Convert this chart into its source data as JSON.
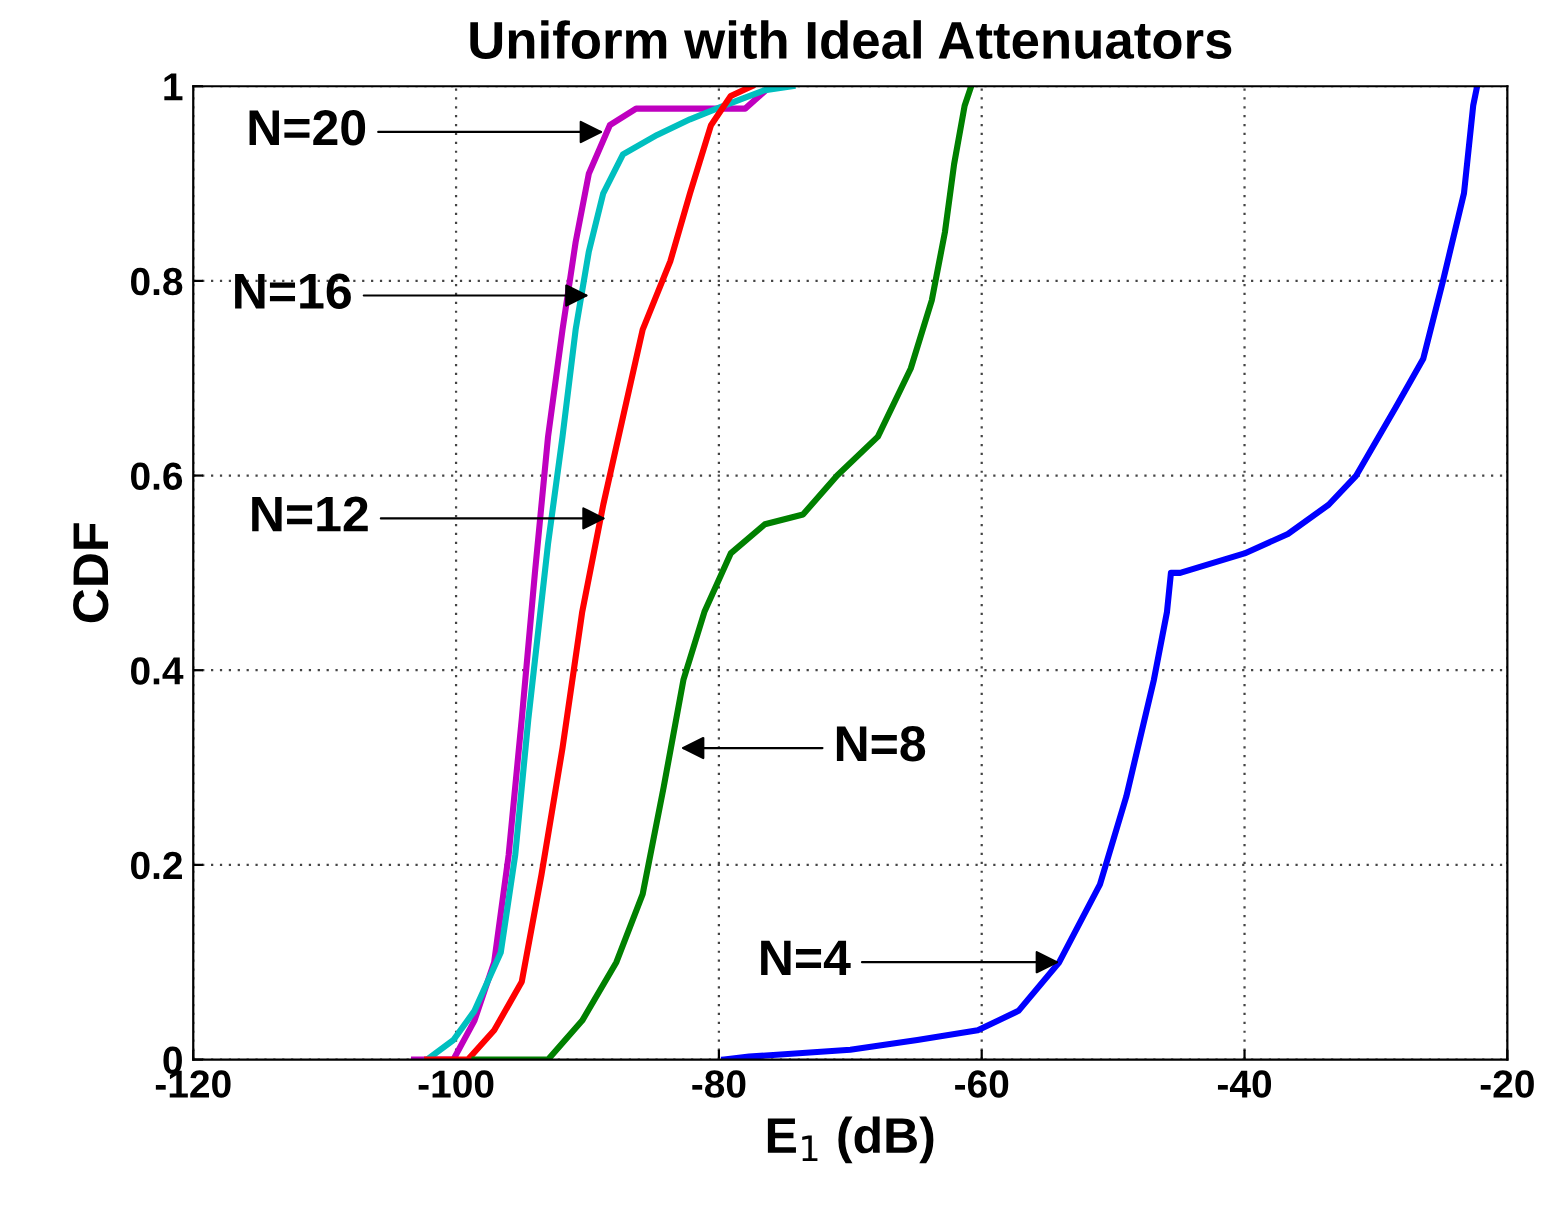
{
  "chart_data": {
    "type": "line",
    "title": "Uniform with Ideal Attenuators",
    "xlabel": "E$_{1}$ (dB)",
    "ylabel": "CDF",
    "xlim": [
      -120,
      -20
    ],
    "xticks": [
      -120,
      -100,
      -80,
      -60,
      -40,
      -20
    ],
    "ylim": [
      0,
      1
    ],
    "yticks": [
      0,
      0.2,
      0.4,
      0.6,
      0.8,
      1
    ],
    "grid": true,
    "marker": "none",
    "line_style": "solid",
    "series": [
      {
        "color": "#bf00bf",
        "x": [
          -103.2,
          -100.2,
          -98.6,
          -97.1,
          -96,
          -95,
          -94,
          -93,
          -91.9,
          -90.9,
          -89.9,
          -88.3,
          -86.3,
          -78,
          -76.5,
          -76
        ],
        "values": [
          0,
          0,
          0.04,
          0.1,
          0.21,
          0.35,
          0.5,
          0.64,
          0.75,
          0.84,
          0.91,
          0.96,
          0.977,
          0.977,
          0.995,
          1
        ]
      },
      {
        "color": "#00bfbf",
        "x": [
          -102.2,
          -100.2,
          -98.6,
          -96.6,
          -95.5,
          -94.5,
          -93,
          -91.9,
          -90.9,
          -89.9,
          -88.8,
          -87.3,
          -84.7,
          -82.2,
          -79.6,
          -76.5,
          -74.4
        ],
        "values": [
          0,
          0.02,
          0.05,
          0.11,
          0.21,
          0.35,
          0.53,
          0.64,
          0.75,
          0.83,
          0.89,
          0.93,
          0.95,
          0.966,
          0.98,
          0.996,
          1
        ]
      },
      {
        "color": "#ff0000",
        "x": [
          -102.2,
          -99.1,
          -97.1,
          -95,
          -93.5,
          -91.9,
          -90.4,
          -88.8,
          -87.3,
          -85.8,
          -83.7,
          -82.2,
          -80.6,
          -79.1,
          -77.5
        ],
        "values": [
          0,
          0,
          0.03,
          0.08,
          0.19,
          0.32,
          0.46,
          0.57,
          0.66,
          0.75,
          0.82,
          0.89,
          0.96,
          0.99,
          1
        ]
      },
      {
        "color": "#008000",
        "x": [
          -98.6,
          -93,
          -90.4,
          -87.8,
          -85.8,
          -84.2,
          -82.7,
          -81.1,
          -79.1,
          -76.5,
          -73.6,
          -71,
          -67.9,
          -65.4,
          -63.8,
          -62.8,
          -62.1,
          -61.3,
          -60.8
        ],
        "values": [
          0,
          0,
          0.04,
          0.1,
          0.17,
          0.28,
          0.39,
          0.46,
          0.52,
          0.55,
          0.56,
          0.6,
          0.64,
          0.71,
          0.78,
          0.85,
          0.92,
          0.98,
          1
        ]
      },
      {
        "color": "#0000ff",
        "x": [
          -79.6,
          -77.7,
          -70,
          -64.9,
          -60.3,
          -57.2,
          -54.1,
          -51,
          -49,
          -46.9,
          -45.9,
          -45.6,
          -44.9,
          -40,
          -36.7,
          -33.6,
          -31.5,
          -28.5,
          -26.4,
          -24.9,
          -23.3,
          -22.6,
          -22.3
        ],
        "values": [
          0,
          0.003,
          0.01,
          0.02,
          0.03,
          0.05,
          0.1,
          0.18,
          0.27,
          0.39,
          0.46,
          0.5,
          0.5,
          0.52,
          0.54,
          0.57,
          0.6,
          0.67,
          0.72,
          0.8,
          0.89,
          0.98,
          1
        ]
      }
    ],
    "annotations": [
      {
        "text": "N=20",
        "x": -88.8,
        "y": 0.953
      },
      {
        "text": "N=16",
        "x": -89.9,
        "y": 0.785
      },
      {
        "text": "N=12",
        "x": -88.6,
        "y": 0.556
      },
      {
        "text": "N=8",
        "x": -82.9,
        "y": 0.32
      },
      {
        "text": "N=4",
        "x": -54.1,
        "y": 0.1
      }
    ]
  }
}
